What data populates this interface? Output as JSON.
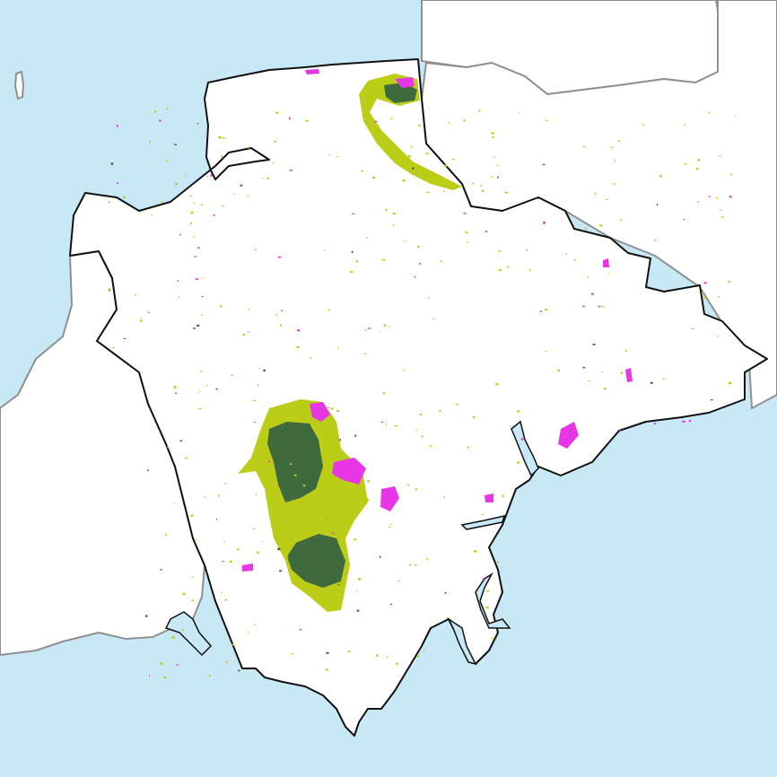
{
  "map": {
    "colors": {
      "sea": "#c8e8f6",
      "land": "#ffffff",
      "neighbour_land": "#ffffff",
      "boundary": "#111111",
      "coast": "#8f8f8f",
      "dense": "#3f6a3e",
      "moderate": "#bccd17",
      "sparse": "#e836e6"
    },
    "layers": [
      {
        "key": "dense",
        "fill": "#3f6a3e"
      },
      {
        "key": "moderate",
        "fill": "#bccd17"
      },
      {
        "key": "sparse",
        "fill": "#e836e6"
      }
    ]
  }
}
